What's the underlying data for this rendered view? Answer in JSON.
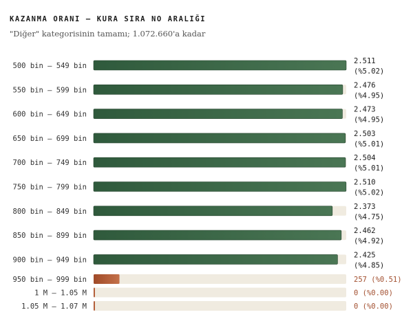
{
  "chart_data": {
    "type": "bar",
    "orientation": "horizontal",
    "title": "KAZANMA ORANI — KURA SIRA NO ARALIĞI",
    "subtitle": "\"Diğer\" kategorisinin tamamı; 1.072.660'a kadar",
    "xlim": [
      0,
      2511
    ],
    "colors": {
      "high": "#3a6446",
      "low": "#b05a33",
      "track": "#f0ebe0"
    },
    "categories": [
      "500 bin – 549 bin",
      "550 bin – 599 bin",
      "600 bin – 649 bin",
      "650 bin – 699 bin",
      "700 bin – 749 bin",
      "750 bin – 799 bin",
      "800 bin – 849 bin",
      "850 bin – 899 bin",
      "900 bin – 949 bin",
      "950 bin – 999 bin",
      "1 M – 1.05 M",
      "1.05 M – 1.07 M"
    ],
    "values": [
      2511,
      2476,
      2473,
      2503,
      2504,
      2510,
      2373,
      2462,
      2425,
      257,
      0,
      0
    ],
    "value_labels": [
      "2.511",
      "2.476",
      "2.473",
      "2.503",
      "2.504",
      "2.510",
      "2.373",
      "2.462",
      "2.425",
      "257",
      "0",
      "0"
    ],
    "pct_labels": [
      "(%5.02)",
      "(%4.95)",
      "(%4.95)",
      "(%5.01)",
      "(%5.01)",
      "(%5.02)",
      "(%4.75)",
      "(%4.92)",
      "(%4.85)",
      "(%0.51)",
      "(%0.00)",
      "(%0.00)"
    ]
  }
}
